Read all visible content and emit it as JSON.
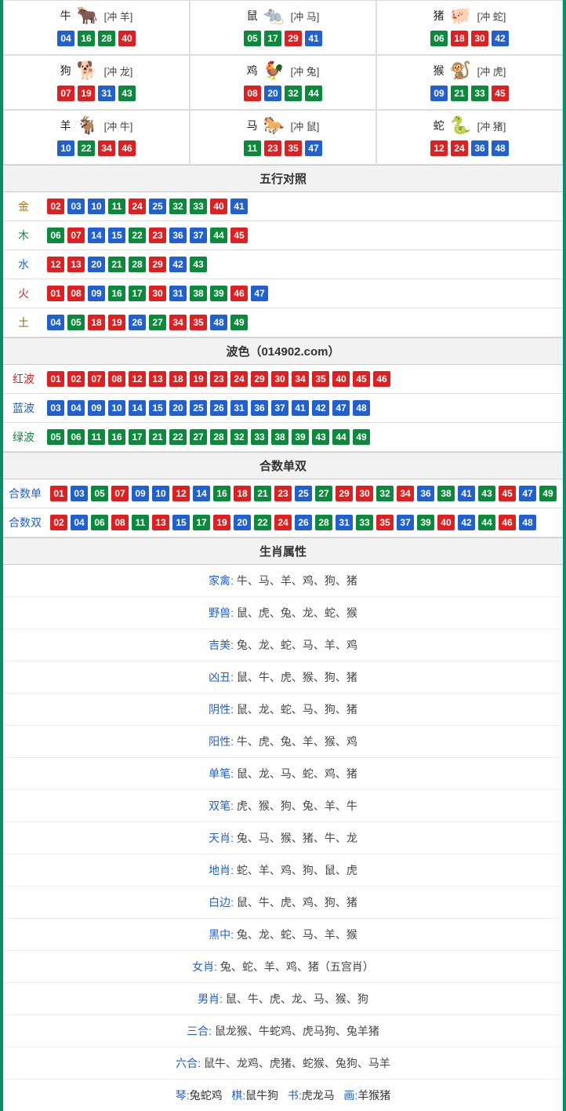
{
  "colors": {
    "red": "#e02020",
    "blue": "#2060d0",
    "green": "#0a8a3a",
    "border_teal": "#0b8c6a",
    "cell_border": "#dddddd",
    "header_bg": "#f2f2f2",
    "text_dark": "#333333",
    "text_mid": "#444444"
  },
  "zodiac": [
    {
      "name": "牛",
      "clash": "[冲 羊]",
      "icon": "🐂",
      "icon_color": "#c04040",
      "nums": [
        {
          "v": "04",
          "c": "blue"
        },
        {
          "v": "16",
          "c": "green"
        },
        {
          "v": "28",
          "c": "green"
        },
        {
          "v": "40",
          "c": "red"
        }
      ]
    },
    {
      "name": "鼠",
      "clash": "[冲 马]",
      "icon": "🐀",
      "icon_color": "#4080c0",
      "nums": [
        {
          "v": "05",
          "c": "green"
        },
        {
          "v": "17",
          "c": "green"
        },
        {
          "v": "29",
          "c": "red"
        },
        {
          "v": "41",
          "c": "blue"
        }
      ]
    },
    {
      "name": "猪",
      "clash": "[冲 蛇]",
      "icon": "🐖",
      "icon_color": "#d06080",
      "nums": [
        {
          "v": "06",
          "c": "green"
        },
        {
          "v": "18",
          "c": "red"
        },
        {
          "v": "30",
          "c": "red"
        },
        {
          "v": "42",
          "c": "blue"
        }
      ]
    },
    {
      "name": "狗",
      "clash": "[冲 龙]",
      "icon": "🐕",
      "icon_color": "#6090d0",
      "nums": [
        {
          "v": "07",
          "c": "red"
        },
        {
          "v": "19",
          "c": "red"
        },
        {
          "v": "31",
          "c": "blue"
        },
        {
          "v": "43",
          "c": "green"
        }
      ]
    },
    {
      "name": "鸡",
      "clash": "[冲 兔]",
      "icon": "🐓",
      "icon_color": "#d0a020",
      "nums": [
        {
          "v": "08",
          "c": "red"
        },
        {
          "v": "20",
          "c": "blue"
        },
        {
          "v": "32",
          "c": "green"
        },
        {
          "v": "44",
          "c": "green"
        }
      ]
    },
    {
      "name": "猴",
      "clash": "[冲 虎]",
      "icon": "🐒",
      "icon_color": "#c05020",
      "nums": [
        {
          "v": "09",
          "c": "blue"
        },
        {
          "v": "21",
          "c": "green"
        },
        {
          "v": "33",
          "c": "green"
        },
        {
          "v": "45",
          "c": "red"
        }
      ]
    },
    {
      "name": "羊",
      "clash": "[冲 牛]",
      "icon": "🐐",
      "icon_color": "#c0a040",
      "nums": [
        {
          "v": "10",
          "c": "blue"
        },
        {
          "v": "22",
          "c": "green"
        },
        {
          "v": "34",
          "c": "red"
        },
        {
          "v": "46",
          "c": "red"
        }
      ]
    },
    {
      "name": "马",
      "clash": "[冲 鼠]",
      "icon": "🐎",
      "icon_color": "#c03020",
      "nums": [
        {
          "v": "11",
          "c": "green"
        },
        {
          "v": "23",
          "c": "red"
        },
        {
          "v": "35",
          "c": "red"
        },
        {
          "v": "47",
          "c": "blue"
        }
      ]
    },
    {
      "name": "蛇",
      "clash": "[冲 猪]",
      "icon": "🐍",
      "icon_color": "#209030",
      "nums": [
        {
          "v": "12",
          "c": "red"
        },
        {
          "v": "24",
          "c": "red"
        },
        {
          "v": "36",
          "c": "blue"
        },
        {
          "v": "48",
          "c": "blue"
        }
      ]
    }
  ],
  "wuxing_header": "五行对照",
  "wuxing": [
    {
      "label": "金",
      "cls": "metal",
      "nums": [
        {
          "v": "02",
          "c": "red"
        },
        {
          "v": "03",
          "c": "blue"
        },
        {
          "v": "10",
          "c": "blue"
        },
        {
          "v": "11",
          "c": "green"
        },
        {
          "v": "24",
          "c": "red"
        },
        {
          "v": "25",
          "c": "blue"
        },
        {
          "v": "32",
          "c": "green"
        },
        {
          "v": "33",
          "c": "green"
        },
        {
          "v": "40",
          "c": "red"
        },
        {
          "v": "41",
          "c": "blue"
        }
      ]
    },
    {
      "label": "木",
      "cls": "wood",
      "nums": [
        {
          "v": "06",
          "c": "green"
        },
        {
          "v": "07",
          "c": "red"
        },
        {
          "v": "14",
          "c": "blue"
        },
        {
          "v": "15",
          "c": "blue"
        },
        {
          "v": "22",
          "c": "green"
        },
        {
          "v": "23",
          "c": "red"
        },
        {
          "v": "36",
          "c": "blue"
        },
        {
          "v": "37",
          "c": "blue"
        },
        {
          "v": "44",
          "c": "green"
        },
        {
          "v": "45",
          "c": "red"
        }
      ]
    },
    {
      "label": "水",
      "cls": "water",
      "nums": [
        {
          "v": "12",
          "c": "red"
        },
        {
          "v": "13",
          "c": "red"
        },
        {
          "v": "20",
          "c": "blue"
        },
        {
          "v": "21",
          "c": "green"
        },
        {
          "v": "28",
          "c": "green"
        },
        {
          "v": "29",
          "c": "red"
        },
        {
          "v": "42",
          "c": "blue"
        },
        {
          "v": "43",
          "c": "green"
        }
      ]
    },
    {
      "label": "火",
      "cls": "fire",
      "nums": [
        {
          "v": "01",
          "c": "red"
        },
        {
          "v": "08",
          "c": "red"
        },
        {
          "v": "09",
          "c": "blue"
        },
        {
          "v": "16",
          "c": "green"
        },
        {
          "v": "17",
          "c": "green"
        },
        {
          "v": "30",
          "c": "red"
        },
        {
          "v": "31",
          "c": "blue"
        },
        {
          "v": "38",
          "c": "green"
        },
        {
          "v": "39",
          "c": "green"
        },
        {
          "v": "46",
          "c": "red"
        },
        {
          "v": "47",
          "c": "blue"
        }
      ]
    },
    {
      "label": "土",
      "cls": "earth",
      "nums": [
        {
          "v": "04",
          "c": "blue"
        },
        {
          "v": "05",
          "c": "green"
        },
        {
          "v": "18",
          "c": "red"
        },
        {
          "v": "19",
          "c": "red"
        },
        {
          "v": "26",
          "c": "blue"
        },
        {
          "v": "27",
          "c": "green"
        },
        {
          "v": "34",
          "c": "red"
        },
        {
          "v": "35",
          "c": "red"
        },
        {
          "v": "48",
          "c": "blue"
        },
        {
          "v": "49",
          "c": "green"
        }
      ]
    }
  ],
  "bose_header": "波色（014902.com）",
  "bose": [
    {
      "label": "红波",
      "cls": "redtxt",
      "nums": [
        {
          "v": "01",
          "c": "red"
        },
        {
          "v": "02",
          "c": "red"
        },
        {
          "v": "07",
          "c": "red"
        },
        {
          "v": "08",
          "c": "red"
        },
        {
          "v": "12",
          "c": "red"
        },
        {
          "v": "13",
          "c": "red"
        },
        {
          "v": "18",
          "c": "red"
        },
        {
          "v": "19",
          "c": "red"
        },
        {
          "v": "23",
          "c": "red"
        },
        {
          "v": "24",
          "c": "red"
        },
        {
          "v": "29",
          "c": "red"
        },
        {
          "v": "30",
          "c": "red"
        },
        {
          "v": "34",
          "c": "red"
        },
        {
          "v": "35",
          "c": "red"
        },
        {
          "v": "40",
          "c": "red"
        },
        {
          "v": "45",
          "c": "red"
        },
        {
          "v": "46",
          "c": "red"
        }
      ]
    },
    {
      "label": "蓝波",
      "cls": "bluetxt",
      "nums": [
        {
          "v": "03",
          "c": "blue"
        },
        {
          "v": "04",
          "c": "blue"
        },
        {
          "v": "09",
          "c": "blue"
        },
        {
          "v": "10",
          "c": "blue"
        },
        {
          "v": "14",
          "c": "blue"
        },
        {
          "v": "15",
          "c": "blue"
        },
        {
          "v": "20",
          "c": "blue"
        },
        {
          "v": "25",
          "c": "blue"
        },
        {
          "v": "26",
          "c": "blue"
        },
        {
          "v": "31",
          "c": "blue"
        },
        {
          "v": "36",
          "c": "blue"
        },
        {
          "v": "37",
          "c": "blue"
        },
        {
          "v": "41",
          "c": "blue"
        },
        {
          "v": "42",
          "c": "blue"
        },
        {
          "v": "47",
          "c": "blue"
        },
        {
          "v": "48",
          "c": "blue"
        }
      ]
    },
    {
      "label": "绿波",
      "cls": "greentxt",
      "nums": [
        {
          "v": "05",
          "c": "green"
        },
        {
          "v": "06",
          "c": "green"
        },
        {
          "v": "11",
          "c": "green"
        },
        {
          "v": "16",
          "c": "green"
        },
        {
          "v": "17",
          "c": "green"
        },
        {
          "v": "21",
          "c": "green"
        },
        {
          "v": "22",
          "c": "green"
        },
        {
          "v": "27",
          "c": "green"
        },
        {
          "v": "28",
          "c": "green"
        },
        {
          "v": "32",
          "c": "green"
        },
        {
          "v": "33",
          "c": "green"
        },
        {
          "v": "38",
          "c": "green"
        },
        {
          "v": "39",
          "c": "green"
        },
        {
          "v": "43",
          "c": "green"
        },
        {
          "v": "44",
          "c": "green"
        },
        {
          "v": "49",
          "c": "green"
        }
      ]
    }
  ],
  "heshu_header": "合数单双",
  "heshu": [
    {
      "label": "合数单",
      "cls": "bluetxt",
      "nums": [
        {
          "v": "01",
          "c": "red"
        },
        {
          "v": "03",
          "c": "blue"
        },
        {
          "v": "05",
          "c": "green"
        },
        {
          "v": "07",
          "c": "red"
        },
        {
          "v": "09",
          "c": "blue"
        },
        {
          "v": "10",
          "c": "blue"
        },
        {
          "v": "12",
          "c": "red"
        },
        {
          "v": "14",
          "c": "blue"
        },
        {
          "v": "16",
          "c": "green"
        },
        {
          "v": "18",
          "c": "red"
        },
        {
          "v": "21",
          "c": "green"
        },
        {
          "v": "23",
          "c": "red"
        },
        {
          "v": "25",
          "c": "blue"
        },
        {
          "v": "27",
          "c": "green"
        },
        {
          "v": "29",
          "c": "red"
        },
        {
          "v": "30",
          "c": "red"
        },
        {
          "v": "32",
          "c": "green"
        },
        {
          "v": "34",
          "c": "red"
        },
        {
          "v": "36",
          "c": "blue"
        },
        {
          "v": "38",
          "c": "green"
        },
        {
          "v": "41",
          "c": "blue"
        },
        {
          "v": "43",
          "c": "green"
        },
        {
          "v": "45",
          "c": "red"
        },
        {
          "v": "47",
          "c": "blue"
        },
        {
          "v": "49",
          "c": "green"
        }
      ]
    },
    {
      "label": "合数双",
      "cls": "bluetxt",
      "nums": [
        {
          "v": "02",
          "c": "red"
        },
        {
          "v": "04",
          "c": "blue"
        },
        {
          "v": "06",
          "c": "green"
        },
        {
          "v": "08",
          "c": "red"
        },
        {
          "v": "11",
          "c": "green"
        },
        {
          "v": "13",
          "c": "red"
        },
        {
          "v": "15",
          "c": "blue"
        },
        {
          "v": "17",
          "c": "green"
        },
        {
          "v": "19",
          "c": "red"
        },
        {
          "v": "20",
          "c": "blue"
        },
        {
          "v": "22",
          "c": "green"
        },
        {
          "v": "24",
          "c": "red"
        },
        {
          "v": "26",
          "c": "blue"
        },
        {
          "v": "28",
          "c": "green"
        },
        {
          "v": "31",
          "c": "blue"
        },
        {
          "v": "33",
          "c": "green"
        },
        {
          "v": "35",
          "c": "red"
        },
        {
          "v": "37",
          "c": "blue"
        },
        {
          "v": "39",
          "c": "green"
        },
        {
          "v": "40",
          "c": "red"
        },
        {
          "v": "42",
          "c": "blue"
        },
        {
          "v": "44",
          "c": "green"
        },
        {
          "v": "46",
          "c": "red"
        },
        {
          "v": "48",
          "c": "blue"
        }
      ]
    }
  ],
  "attr_header": "生肖属性",
  "attrs": [
    {
      "key": "家禽",
      "val": "牛、马、羊、鸡、狗、猪"
    },
    {
      "key": "野兽",
      "val": "鼠、虎、兔、龙、蛇、猴"
    },
    {
      "key": "吉美",
      "val": "兔、龙、蛇、马、羊、鸡"
    },
    {
      "key": "凶丑",
      "val": "鼠、牛、虎、猴、狗、猪"
    },
    {
      "key": "阴性",
      "val": "鼠、龙、蛇、马、狗、猪"
    },
    {
      "key": "阳性",
      "val": "牛、虎、兔、羊、猴、鸡"
    },
    {
      "key": "单笔",
      "val": "鼠、龙、马、蛇、鸡、猪"
    },
    {
      "key": "双笔",
      "val": "虎、猴、狗、兔、羊、牛"
    },
    {
      "key": "天肖",
      "val": "兔、马、猴、猪、牛、龙"
    },
    {
      "key": "地肖",
      "val": "蛇、羊、鸡、狗、鼠、虎"
    },
    {
      "key": "白边",
      "val": "鼠、牛、虎、鸡、狗、猪"
    },
    {
      "key": "黑中",
      "val": "兔、龙、蛇、马、羊、猴"
    },
    {
      "key": "女肖",
      "val": "兔、蛇、羊、鸡、猪（五宫肖）"
    },
    {
      "key": "男肖",
      "val": "鼠、牛、虎、龙、马、猴、狗"
    },
    {
      "key": "三合",
      "val": "鼠龙猴、牛蛇鸡、虎马狗、兔羊猪"
    },
    {
      "key": "六合",
      "val": "鼠牛、龙鸡、虎猪、蛇猴、兔狗、马羊"
    }
  ],
  "bottom_line": {
    "key1": "琴:",
    "v1": "兔蛇鸡",
    "key2": "棋:",
    "v2": "鼠牛狗",
    "key3": "书:",
    "v3": "虎龙马",
    "key4": "画:",
    "v4": "羊猴猪"
  }
}
